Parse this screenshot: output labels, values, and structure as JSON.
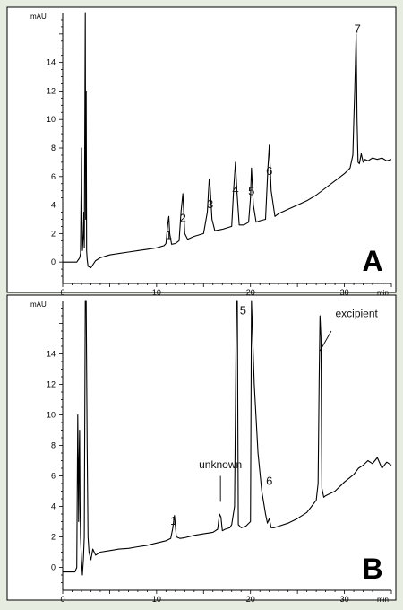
{
  "colors": {
    "background": "#e6ece0",
    "panel": "#ffffff",
    "trace": "#000000",
    "axis": "#000000",
    "grid_divider": "#555555"
  },
  "chart_data": [
    {
      "type": "line",
      "panel_label": "A",
      "ylabel": "mAU",
      "xlabel": "min",
      "xlim": [
        0,
        35
      ],
      "ylim": [
        -1.5,
        17.5
      ],
      "x_ticks": [
        0,
        10,
        20,
        30
      ],
      "y_ticks": [
        0,
        2,
        4,
        6,
        8,
        10,
        12,
        14
      ],
      "grid": false,
      "peak_labels": [
        {
          "text": "1",
          "x": 11.3,
          "y": 1.6
        },
        {
          "text": "2",
          "x": 12.8,
          "y": 2.8
        },
        {
          "text": "3",
          "x": 15.7,
          "y": 3.8
        },
        {
          "text": "4",
          "x": 18.4,
          "y": 4.8
        },
        {
          "text": "5",
          "x": 20.1,
          "y": 4.7
        },
        {
          "text": "6",
          "x": 22.0,
          "y": 6.1
        },
        {
          "text": "7",
          "x": 31.4,
          "y": 16.1
        }
      ],
      "series": [
        {
          "x": [
            0,
            1.5,
            1.8,
            1.9,
            2.0,
            2.05,
            2.1,
            2.2,
            2.25,
            2.3,
            2.4,
            2.45,
            2.5,
            2.55,
            2.6,
            2.7,
            3.0,
            3.5,
            4,
            5,
            6,
            7,
            8,
            9,
            10,
            10.8,
            11.0,
            11.2,
            11.3,
            11.4,
            11.6,
            12.0,
            12.4,
            12.6,
            12.8,
            13.0,
            13.3,
            14,
            15.0,
            15.4,
            15.6,
            15.7,
            15.9,
            16.2,
            17,
            18.0,
            18.2,
            18.4,
            18.55,
            18.8,
            19.3,
            19.8,
            20.0,
            20.1,
            20.3,
            20.6,
            21,
            21.6,
            21.85,
            22.0,
            22.2,
            22.6,
            23,
            24,
            25,
            26,
            27,
            28,
            29,
            30,
            30.6,
            30.9,
            31.0,
            31.1,
            31.25,
            31.35,
            31.45,
            31.6,
            31.8,
            32.0,
            32.2,
            32.5,
            33,
            33.5,
            34,
            34.5,
            35
          ],
          "y": [
            0,
            0,
            0.3,
            0.6,
            8.0,
            3.0,
            0.8,
            2.0,
            3.5,
            1.0,
            18.0,
            3.0,
            12.0,
            0.8,
            0.2,
            -0.3,
            -0.4,
            0.1,
            0.3,
            0.5,
            0.6,
            0.7,
            0.8,
            0.9,
            1.0,
            1.15,
            1.3,
            2.7,
            3.2,
            2.0,
            1.25,
            1.3,
            1.5,
            3.5,
            4.8,
            2.0,
            1.6,
            1.8,
            2.0,
            3.5,
            5.8,
            5.3,
            3.0,
            2.2,
            2.3,
            2.5,
            5.0,
            7.0,
            5.0,
            2.6,
            2.6,
            2.8,
            4.5,
            6.6,
            4.0,
            2.8,
            2.9,
            3.0,
            6.5,
            8.2,
            5.0,
            3.2,
            3.4,
            3.7,
            4.0,
            4.3,
            4.7,
            5.2,
            5.7,
            6.2,
            6.6,
            7.5,
            10.0,
            12.0,
            16.0,
            10.0,
            7.0,
            6.9,
            7.6,
            7.0,
            7.2,
            7.1,
            7.3,
            7.2,
            7.3,
            7.1,
            7.2
          ]
        }
      ]
    },
    {
      "type": "line",
      "panel_label": "B",
      "ylabel": "mAU",
      "xlabel": "min",
      "xlim": [
        0,
        35
      ],
      "ylim": [
        -1.5,
        17.5
      ],
      "x_ticks": [
        0,
        10,
        20,
        30
      ],
      "y_ticks": [
        0,
        2,
        4,
        6,
        8,
        10,
        12,
        14
      ],
      "grid": false,
      "peak_labels": [
        {
          "text": "1",
          "x": 11.8,
          "y": 2.8
        },
        {
          "text": "unknown",
          "x": 16.8,
          "y": 6.5
        },
        {
          "text": "5",
          "x": 19.2,
          "y": 16.6
        },
        {
          "text": "6",
          "x": 22.0,
          "y": 5.4
        },
        {
          "text": "excipient",
          "x": 31.3,
          "y": 16.4
        }
      ],
      "annotation_lines": [
        {
          "x1": 16.8,
          "y1": 6.0,
          "x2": 16.8,
          "y2": 4.3
        },
        {
          "x1": 28.6,
          "y1": 15.5,
          "x2": 27.4,
          "y2": 14.2
        }
      ],
      "series": [
        {
          "x": [
            0,
            1.3,
            1.5,
            1.6,
            1.7,
            1.75,
            1.8,
            1.85,
            1.9,
            2.0,
            2.1,
            2.2,
            2.3,
            2.4,
            2.5,
            2.6,
            2.7,
            2.8,
            3.0,
            3.2,
            3.5,
            4,
            5,
            6,
            7,
            8,
            9,
            10,
            11.0,
            11.5,
            11.7,
            11.9,
            12.1,
            12.5,
            13,
            14,
            15,
            16.0,
            16.5,
            16.7,
            16.85,
            17.0,
            17.3,
            17.8,
            18.0,
            18.3,
            18.5,
            18.6,
            18.7,
            19.0,
            19.5,
            20.0,
            20.1,
            20.4,
            20.8,
            21.2,
            21.6,
            21.8,
            22.0,
            22.2,
            22.5,
            23,
            24,
            25,
            26,
            26.5,
            27.0,
            27.2,
            27.3,
            27.4,
            27.5,
            27.6,
            27.8,
            28,
            29,
            30,
            31,
            31.5,
            32,
            32.5,
            33,
            33.5,
            34,
            34.5,
            35
          ],
          "y": [
            -0.3,
            -0.3,
            0,
            10.0,
            3.0,
            7.0,
            9.0,
            4.0,
            2.0,
            0.5,
            -0.5,
            0.5,
            2.0,
            18.0,
            18.0,
            8.0,
            2.0,
            1.0,
            0.5,
            1.2,
            0.8,
            1.0,
            1.1,
            1.2,
            1.25,
            1.35,
            1.45,
            1.6,
            1.75,
            1.9,
            2.5,
            3.4,
            2.0,
            1.9,
            1.95,
            2.1,
            2.2,
            2.3,
            2.5,
            3.5,
            3.3,
            2.4,
            2.5,
            2.6,
            2.8,
            4.0,
            18.0,
            18.0,
            2.8,
            2.6,
            2.7,
            3.0,
            18.0,
            12.0,
            7.5,
            5.0,
            3.5,
            2.9,
            3.2,
            2.6,
            2.6,
            2.7,
            2.9,
            3.2,
            3.6,
            4.0,
            4.4,
            5.5,
            12.0,
            16.5,
            15.0,
            5.2,
            4.6,
            4.7,
            5.0,
            5.6,
            6.1,
            6.5,
            6.7,
            7.0,
            6.8,
            7.2,
            6.5,
            6.9,
            6.7
          ]
        }
      ]
    }
  ]
}
